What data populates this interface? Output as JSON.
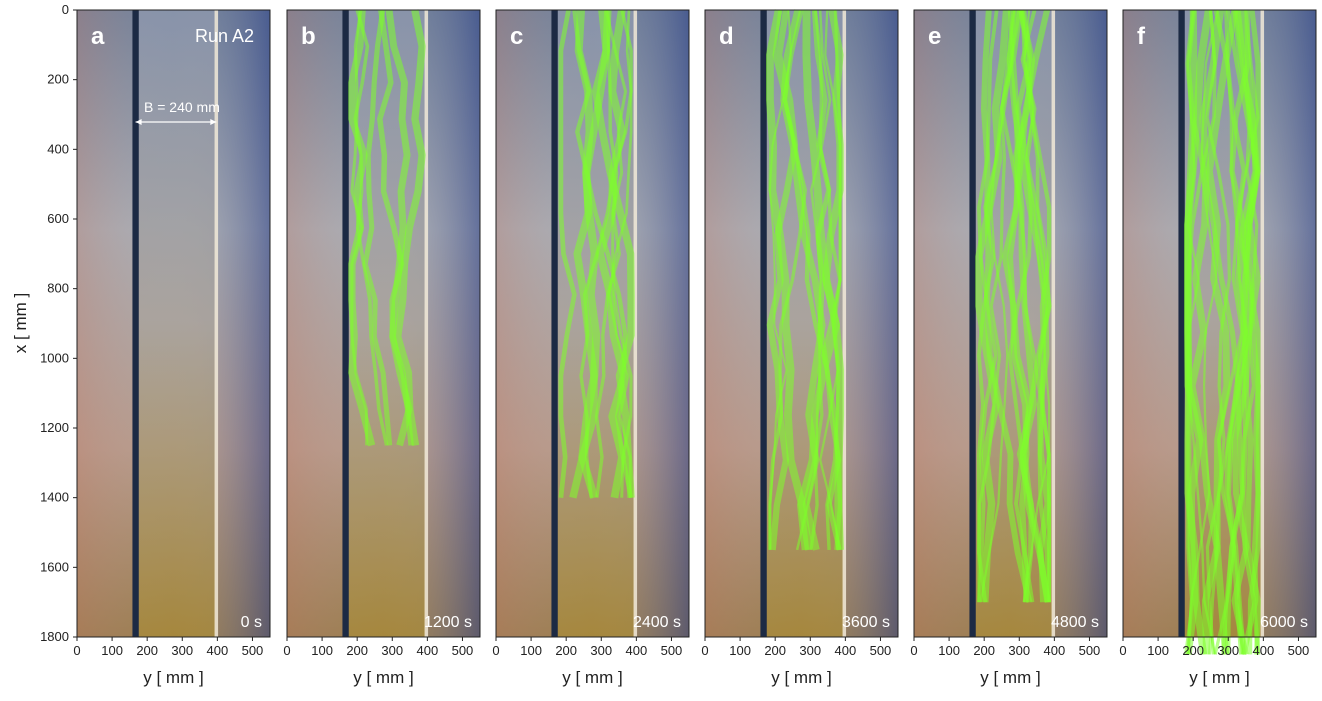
{
  "figure": {
    "y_axis": {
      "label": "x [ mm ]",
      "lim": [
        0,
        1800
      ],
      "ticks": [
        0,
        200,
        400,
        600,
        800,
        1000,
        1200,
        1400,
        1600,
        1800
      ]
    },
    "x_axis": {
      "label": "y [ mm ]",
      "lim": [
        0,
        550
      ],
      "ticks": [
        0,
        100,
        200,
        300,
        400,
        500
      ]
    },
    "run_label": "Run A2",
    "width_annotation": "B = 240 mm",
    "panels": [
      {
        "letter": "a",
        "time": "0 s"
      },
      {
        "letter": "b",
        "time": "1200 s"
      },
      {
        "letter": "c",
        "time": "2400 s"
      },
      {
        "letter": "d",
        "time": "3600 s"
      },
      {
        "letter": "e",
        "time": "4800 s"
      },
      {
        "letter": "f",
        "time": "6000 s"
      }
    ]
  }
}
